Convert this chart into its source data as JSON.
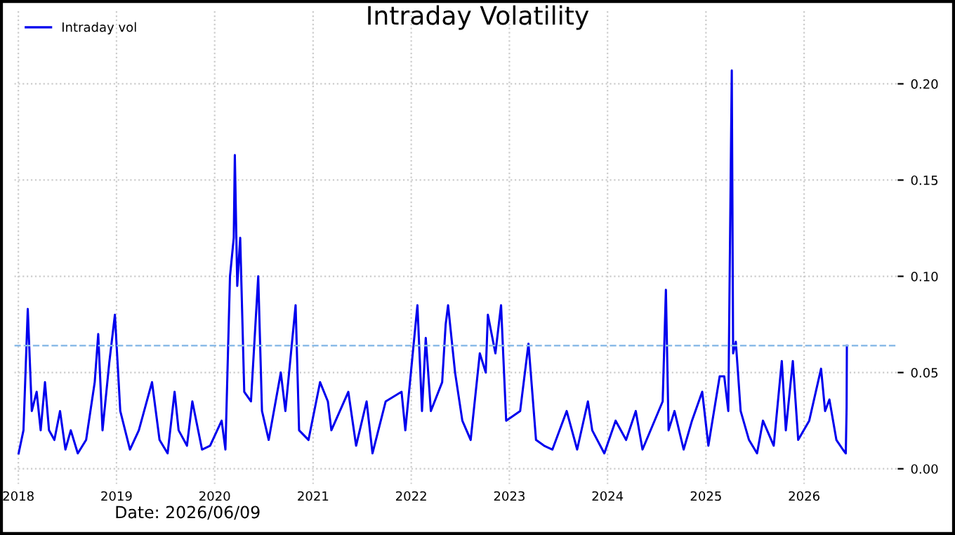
{
  "chart_data": {
    "type": "line",
    "title": "Intraday Volatility",
    "annotations": [
      "Date: 2026/06/09"
    ],
    "x": [
      "2018-01-02",
      "2018-01-20",
      "2018-02-05",
      "2018-02-20",
      "2018-03-10",
      "2018-03-25",
      "2018-04-10",
      "2018-04-25",
      "2018-05-15",
      "2018-06-05",
      "2018-06-25",
      "2018-07-15",
      "2018-08-10",
      "2018-09-10",
      "2018-10-12",
      "2018-10-25",
      "2018-11-10",
      "2018-12-05",
      "2018-12-26",
      "2019-01-15",
      "2019-02-20",
      "2019-03-25",
      "2019-05-13",
      "2019-06-10",
      "2019-07-10",
      "2019-08-05",
      "2019-08-20",
      "2019-09-20",
      "2019-10-10",
      "2019-11-15",
      "2019-12-15",
      "2020-01-27",
      "2020-02-10",
      "2020-02-27",
      "2020-03-12",
      "2020-03-16",
      "2020-03-25",
      "2020-04-05",
      "2020-04-20",
      "2020-05-15",
      "2020-06-11",
      "2020-06-25",
      "2020-07-20",
      "2020-09-03",
      "2020-09-20",
      "2020-10-28",
      "2020-11-10",
      "2020-12-15",
      "2021-01-27",
      "2021-02-25",
      "2021-03-10",
      "2021-05-12",
      "2021-06-10",
      "2021-07-19",
      "2021-08-10",
      "2021-09-28",
      "2021-11-26",
      "2021-12-10",
      "2022-01-24",
      "2022-02-10",
      "2022-02-24",
      "2022-03-15",
      "2022-04-26",
      "2022-05-09",
      "2022-05-18",
      "2022-06-13",
      "2022-07-10",
      "2022-08-10",
      "2022-09-13",
      "2022-10-05",
      "2022-10-13",
      "2022-11-10",
      "2022-12-01",
      "2022-12-20",
      "2023-02-10",
      "2023-03-13",
      "2023-04-10",
      "2023-05-10",
      "2023-06-10",
      "2023-08-02",
      "2023-09-10",
      "2023-10-20",
      "2023-11-05",
      "2023-12-20",
      "2024-01-31",
      "2024-03-10",
      "2024-04-15",
      "2024-05-10",
      "2024-07-24",
      "2024-08-05",
      "2024-08-15",
      "2024-09-06",
      "2024-10-10",
      "2024-11-10",
      "2024-12-18",
      "2025-01-10",
      "2025-02-21",
      "2025-03-10",
      "2025-03-25",
      "2025-04-07",
      "2025-04-12",
      "2025-04-22",
      "2025-05-10",
      "2025-06-10",
      "2025-07-10",
      "2025-08-01",
      "2025-09-10",
      "2025-10-10",
      "2025-10-25",
      "2025-11-20",
      "2025-12-10",
      "2026-01-20",
      "2026-03-05",
      "2026-03-20",
      "2026-04-05",
      "2026-05-01",
      "2026-05-25",
      "2026-06-05",
      "2026-06-08",
      "2026-06-09"
    ],
    "series": [
      {
        "name": "Intraday vol",
        "color": "#0000ee",
        "values": [
          0.008,
          0.02,
          0.083,
          0.03,
          0.04,
          0.02,
          0.045,
          0.02,
          0.015,
          0.03,
          0.01,
          0.02,
          0.008,
          0.015,
          0.045,
          0.07,
          0.02,
          0.055,
          0.08,
          0.03,
          0.01,
          0.02,
          0.045,
          0.015,
          0.008,
          0.04,
          0.02,
          0.012,
          0.035,
          0.01,
          0.012,
          0.025,
          0.01,
          0.1,
          0.12,
          0.163,
          0.095,
          0.12,
          0.04,
          0.035,
          0.1,
          0.03,
          0.015,
          0.05,
          0.03,
          0.085,
          0.02,
          0.015,
          0.045,
          0.035,
          0.02,
          0.04,
          0.012,
          0.035,
          0.008,
          0.035,
          0.04,
          0.02,
          0.085,
          0.03,
          0.068,
          0.03,
          0.045,
          0.075,
          0.085,
          0.05,
          0.025,
          0.015,
          0.06,
          0.05,
          0.08,
          0.06,
          0.085,
          0.025,
          0.03,
          0.065,
          0.015,
          0.012,
          0.01,
          0.03,
          0.01,
          0.035,
          0.02,
          0.008,
          0.025,
          0.015,
          0.03,
          0.01,
          0.035,
          0.093,
          0.02,
          0.03,
          0.01,
          0.025,
          0.04,
          0.012,
          0.048,
          0.048,
          0.03,
          0.207,
          0.06,
          0.066,
          0.03,
          0.015,
          0.008,
          0.025,
          0.012,
          0.056,
          0.02,
          0.056,
          0.015,
          0.025,
          0.052,
          0.03,
          0.036,
          0.015,
          0.01,
          0.008,
          0.032,
          0.064
        ]
      }
    ],
    "xlim": [
      "2017-12-17",
      "2026-12-15"
    ],
    "xticks": [
      "2018",
      "2019",
      "2020",
      "2021",
      "2022",
      "2023",
      "2024",
      "2025",
      "2026"
    ],
    "ylim": [
      -0.008,
      0.238
    ],
    "yticks": [
      {
        "value": 0,
        "label": "0.00"
      },
      {
        "value": 0.05,
        "label": "0.05"
      },
      {
        "value": 0.1,
        "label": "0.10"
      },
      {
        "value": 0.15,
        "label": "0.15"
      },
      {
        "value": 0.2,
        "label": "0.20"
      }
    ],
    "ref_lines": [
      {
        "axis": "y",
        "value": 0.064,
        "color": "#8cbbe8",
        "line_style": "dashed"
      }
    ],
    "grid": true,
    "legend": "top left",
    "line_style": "solid",
    "marker": "none"
  }
}
